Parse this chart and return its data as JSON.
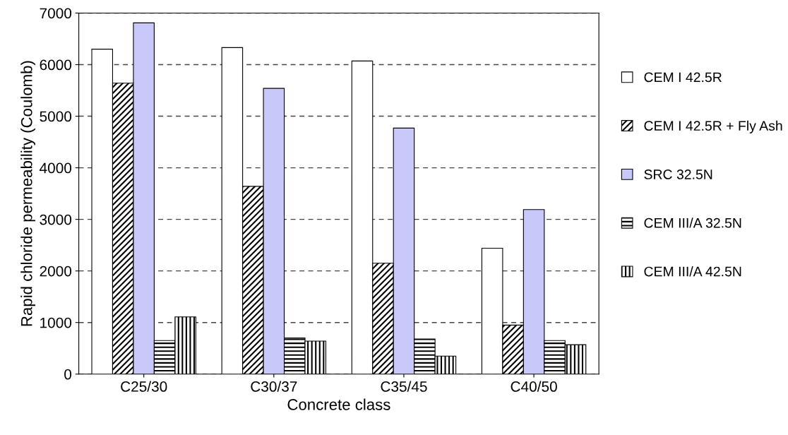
{
  "chart_data": {
    "type": "bar",
    "xlabel": "Concrete class",
    "ylabel": "Rapid chloride permeability (Coulomb)",
    "categories": [
      "C25/30",
      "C30/37",
      "C35/45",
      "C40/50"
    ],
    "series": [
      {
        "name": "CEM I 42.5R",
        "color": "#ffffff",
        "values": [
          6300,
          6330,
          6070,
          2440
        ]
      },
      {
        "name": "CEM I 42.5R + Fly Ash",
        "color": "#000000",
        "values": [
          5640,
          3640,
          2150,
          950
        ]
      },
      {
        "name": "SRC 32.5N",
        "color": "#c8c8fa",
        "values": [
          6810,
          5540,
          4770,
          3190
        ]
      },
      {
        "name": "CEM III/A 32.5N",
        "color": "#000000",
        "values": [
          650,
          700,
          680,
          650
        ]
      },
      {
        "name": "CEM III/A 42.5N",
        "color": "#000000",
        "values": [
          1110,
          640,
          350,
          570
        ]
      }
    ],
    "ylim": [
      0,
      7000
    ],
    "yticks": [
      0,
      1000,
      2000,
      3000,
      4000,
      5000,
      6000,
      7000
    ],
    "grid": "y",
    "legend": "right"
  }
}
